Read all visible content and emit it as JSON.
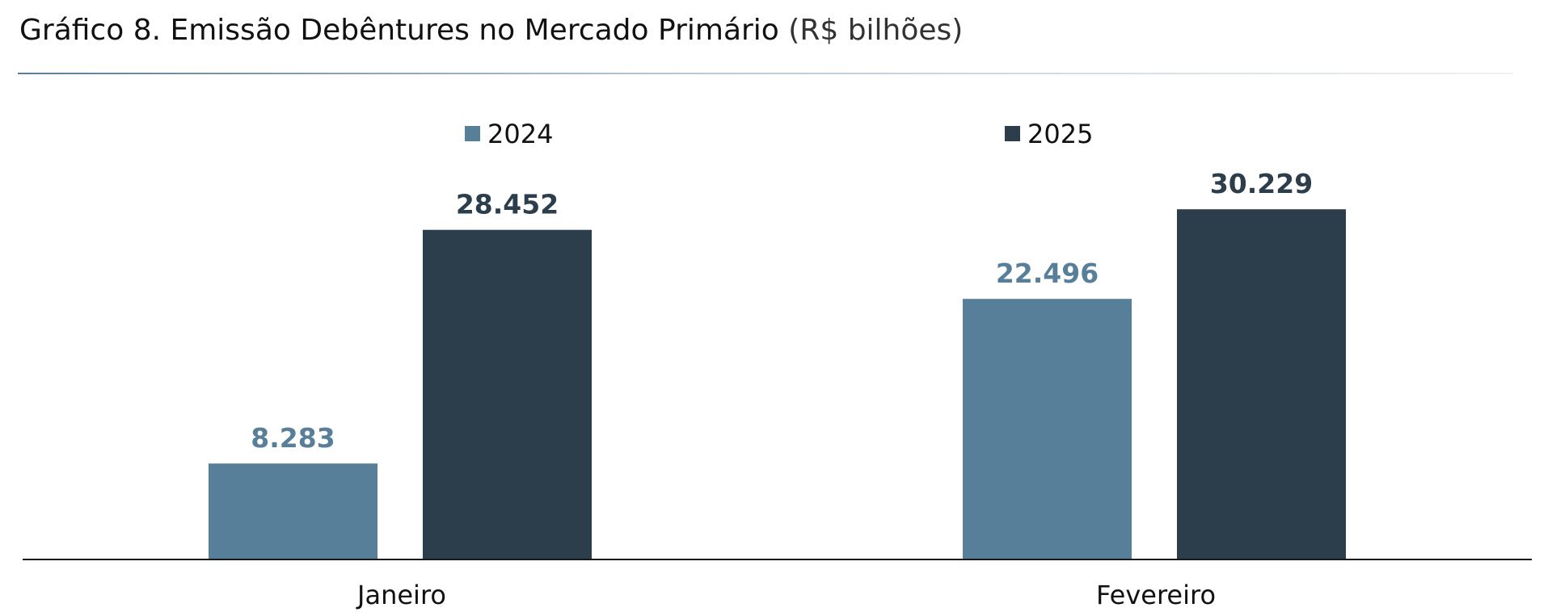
{
  "title": {
    "main": "Gráfico 8. Emissão Debêntures no Mercado Primário",
    "unit": "(R$ bilhões)"
  },
  "colors": {
    "series_2024": "#587f99",
    "series_2025": "#2c3e4c",
    "axis": "#1a1a1a"
  },
  "chart_data": {
    "type": "bar",
    "title": "Gráfico 8. Emissão Debêntures no Mercado Primário (R$ bilhões)",
    "categories": [
      "Janeiro",
      "Fevereiro"
    ],
    "series": [
      {
        "name": "2024",
        "values": [
          8.283,
          22.496
        ],
        "labels": [
          "8.283",
          "22.496"
        ]
      },
      {
        "name": "2025",
        "values": [
          28.452,
          30.229
        ],
        "labels": [
          "28.452",
          "30.229"
        ]
      }
    ],
    "ylim": [
      0,
      32
    ],
    "grid": false,
    "legend": "top-center"
  }
}
